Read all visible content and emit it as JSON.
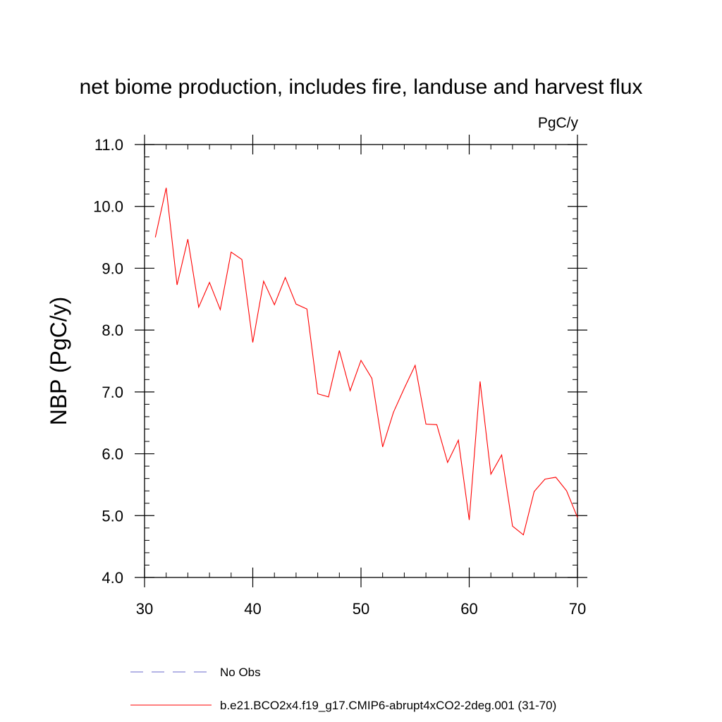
{
  "chart_data": {
    "type": "line",
    "title": "net biome production, includes fire, landuse and harvest flux",
    "units_label": "PgC/y",
    "xlabel": "",
    "ylabel": "NBP  (PgC/y)",
    "xlim": [
      30,
      70
    ],
    "ylim": [
      4.0,
      11.0
    ],
    "x_ticks": [
      30,
      40,
      50,
      60,
      70
    ],
    "x_tick_labels": [
      "30",
      "40",
      "50",
      "60",
      "70"
    ],
    "y_ticks": [
      4.0,
      5.0,
      6.0,
      7.0,
      8.0,
      9.0,
      10.0,
      11.0
    ],
    "y_tick_labels": [
      "4.0",
      "5.0",
      "6.0",
      "7.0",
      "8.0",
      "9.0",
      "10.0",
      "11.0"
    ],
    "grid": false,
    "legend_position": "bottom",
    "series": [
      {
        "name": "b.e21.BCO2x4.f19_g17.CMIP6-abrupt4xCO2-2deg.001 (31-70)",
        "color": "#ff0000",
        "style": "solid",
        "x": [
          31,
          32,
          33,
          34,
          35,
          36,
          37,
          38,
          39,
          40,
          41,
          42,
          43,
          44,
          45,
          46,
          47,
          48,
          49,
          50,
          51,
          52,
          53,
          54,
          55,
          56,
          57,
          58,
          59,
          60,
          61,
          62,
          63,
          64,
          65,
          66,
          67,
          68,
          69,
          70
        ],
        "y": [
          9.5,
          10.3,
          8.73,
          9.47,
          8.37,
          8.77,
          8.33,
          9.26,
          9.14,
          7.8,
          8.79,
          8.41,
          8.85,
          8.42,
          8.34,
          6.97,
          6.92,
          7.67,
          7.02,
          7.51,
          7.22,
          6.11,
          6.67,
          7.06,
          7.43,
          6.48,
          6.47,
          5.86,
          6.22,
          4.93,
          7.17,
          5.67,
          5.98,
          4.83,
          4.69,
          5.39,
          5.59,
          5.62,
          5.4,
          4.97
        ]
      }
    ],
    "legend": [
      {
        "label": "No Obs",
        "color": "#6a6acd",
        "style": "dashed"
      },
      {
        "label": "b.e21.BCO2x4.f19_g17.CMIP6-abrupt4xCO2-2deg.001 (31-70)",
        "color": "#ff0000",
        "style": "solid"
      }
    ]
  }
}
